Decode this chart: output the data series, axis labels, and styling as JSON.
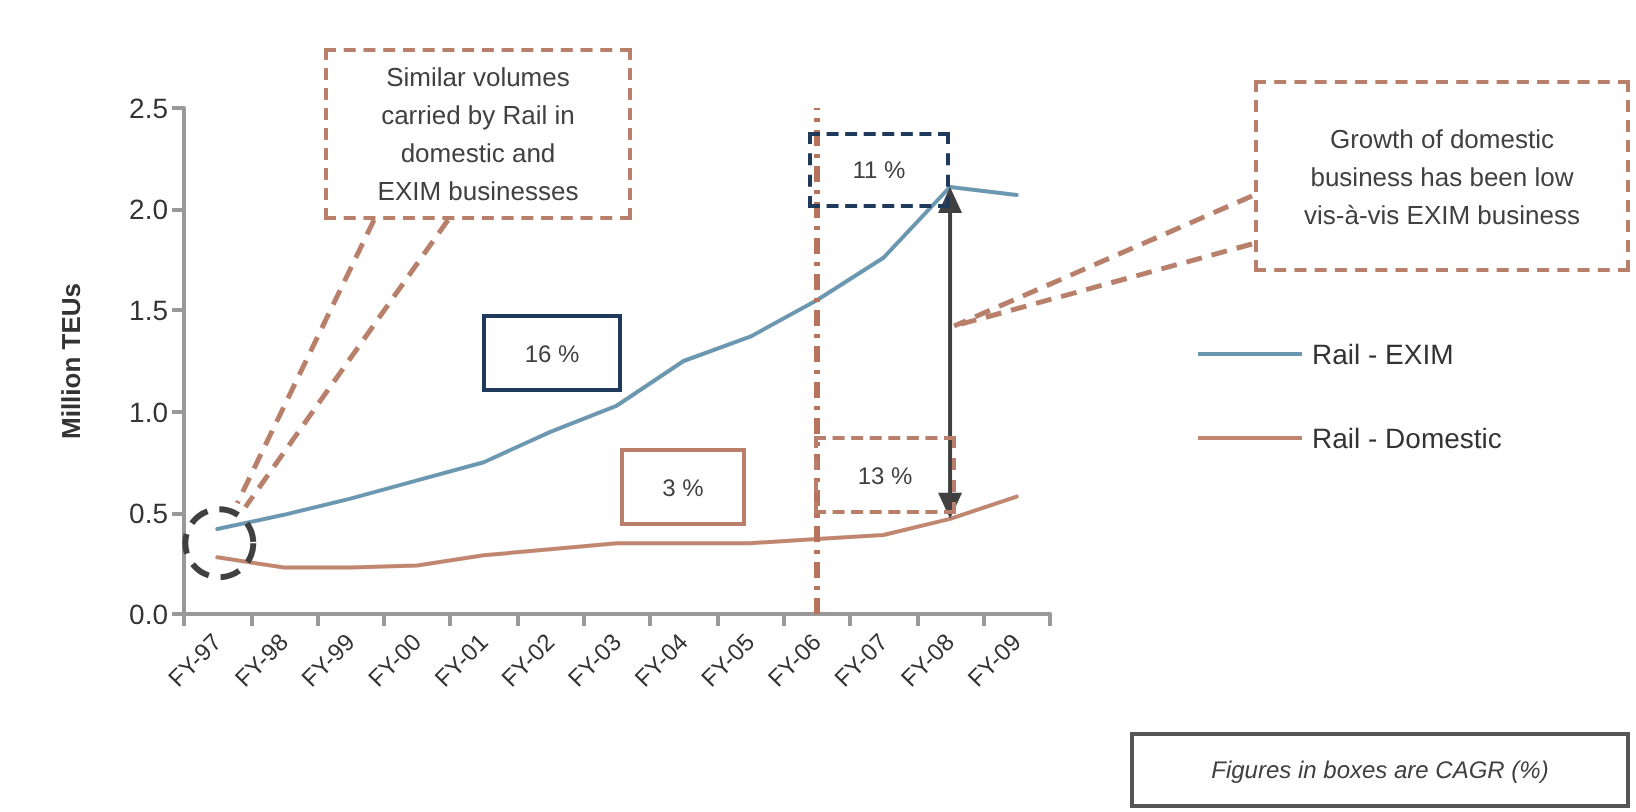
{
  "chart_data": {
    "type": "line",
    "ylabel": "Million TEUs",
    "categories": [
      "FY-97",
      "FY-98",
      "FY-99",
      "FY-00",
      "FY-01",
      "FY-02",
      "FY-03",
      "FY-04",
      "FY-05",
      "FY-06",
      "FY-07",
      "FY-08",
      "FY-09"
    ],
    "series": [
      {
        "name": "Rail - EXIM",
        "color": "#6b97b0",
        "values": [
          0.42,
          0.49,
          0.57,
          0.66,
          0.75,
          0.9,
          1.03,
          1.25,
          1.37,
          1.55,
          1.76,
          2.11,
          2.07
        ]
      },
      {
        "name": "Rail - Domestic",
        "color": "#c08670",
        "values": [
          0.28,
          0.23,
          0.23,
          0.24,
          0.29,
          0.32,
          0.35,
          0.35,
          0.35,
          0.37,
          0.39,
          0.47,
          0.58
        ]
      }
    ],
    "ylim": [
      0,
      2.5
    ],
    "yticks": [
      {
        "value": 0,
        "label": "0.0"
      },
      {
        "value": 0.5,
        "label": "0.5"
      },
      {
        "value": 1,
        "label": "1.0"
      },
      {
        "value": 1.5,
        "label": "1.5"
      },
      {
        "value": 2,
        "label": "2.0"
      },
      {
        "value": 2.5,
        "label": "2.5"
      }
    ],
    "grid": false,
    "legend": "right",
    "marker": "none",
    "line_style": "solid",
    "ref_lines": [
      {
        "axis": "x",
        "value": "FY-06",
        "color": "#b8735c",
        "line_style": "dashdot"
      }
    ],
    "annotations": [
      "Similar volumes\ncarried by Rail in\ndomestic and\nEXIM businesses",
      "16 %",
      "3 %",
      "11 %",
      "13 %",
      "Growth of domestic\nbusiness has been  low\nvis-à-vis EXIM business",
      "Figures in boxes are CAGR (%)"
    ]
  }
}
